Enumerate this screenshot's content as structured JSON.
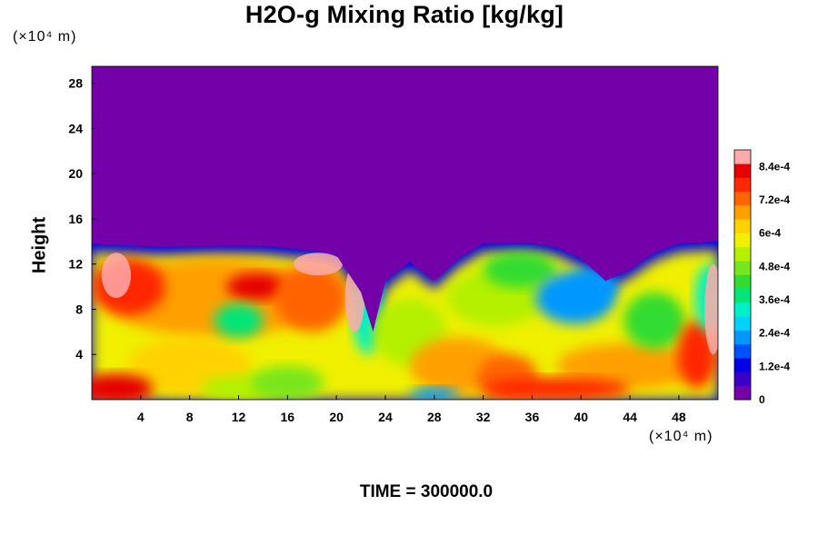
{
  "chart_data": {
    "type": "heatmap",
    "title": "H2O-g Mixing Ratio [kg/kg]",
    "ylabel": "Height",
    "x_units": "(×10⁴ m)",
    "y_units": "(×10⁴ m)",
    "x_ticks": [
      4,
      8,
      12,
      16,
      20,
      24,
      28,
      32,
      36,
      40,
      44,
      48
    ],
    "y_ticks": [
      4,
      8,
      12,
      16,
      20,
      24,
      28
    ],
    "xlim": [
      0,
      51.2
    ],
    "ylim": [
      0,
      29.5
    ],
    "colorbar": {
      "range": [
        0,
        0.0009
      ],
      "tick_values": [
        0,
        0.00012,
        0.00024,
        0.00036,
        0.00048,
        0.0006,
        0.00072,
        0.00084
      ],
      "tick_labels": [
        "0",
        "1.2e-4",
        "2.4e-4",
        "3.6e-4",
        "4.8e-4",
        "6e-4",
        "7.2e-4",
        "8.4e-4"
      ],
      "colors": [
        "#7300a8",
        "#3a00c8",
        "#0000e6",
        "#0050ff",
        "#0098ff",
        "#00d2ff",
        "#00f0c8",
        "#00e678",
        "#32dc32",
        "#78e61e",
        "#b4f000",
        "#f0f000",
        "#ffd200",
        "#ffa000",
        "#ff6400",
        "#ff2800",
        "#e60000",
        "#ffaaaa"
      ]
    },
    "field_summary": {
      "top_of_moist_layer": [
        [
          0,
          13.8
        ],
        [
          6,
          13.5
        ],
        [
          10,
          13.6
        ],
        [
          14,
          13.6
        ],
        [
          18,
          13.2
        ],
        [
          20,
          12.8
        ],
        [
          22,
          9.5
        ],
        [
          23,
          6.0
        ],
        [
          24,
          10.5
        ],
        [
          26,
          12.2
        ],
        [
          28,
          10.5
        ],
        [
          30,
          12.5
        ],
        [
          32,
          13.8
        ],
        [
          36,
          13.8
        ],
        [
          38,
          13.5
        ],
        [
          40,
          12.5
        ],
        [
          42,
          10.5
        ],
        [
          44,
          11.5
        ],
        [
          46,
          13.0
        ],
        [
          48,
          13.8
        ],
        [
          51.2,
          14.0
        ]
      ],
      "level_above_moist_layer": 0,
      "dry_pocket_center": [
        40,
        9
      ],
      "dry_pocket_level": 0.00024,
      "near_surface_maximum": 0.00084
    },
    "annotations": {
      "time": "TIME = 300000.0"
    }
  }
}
